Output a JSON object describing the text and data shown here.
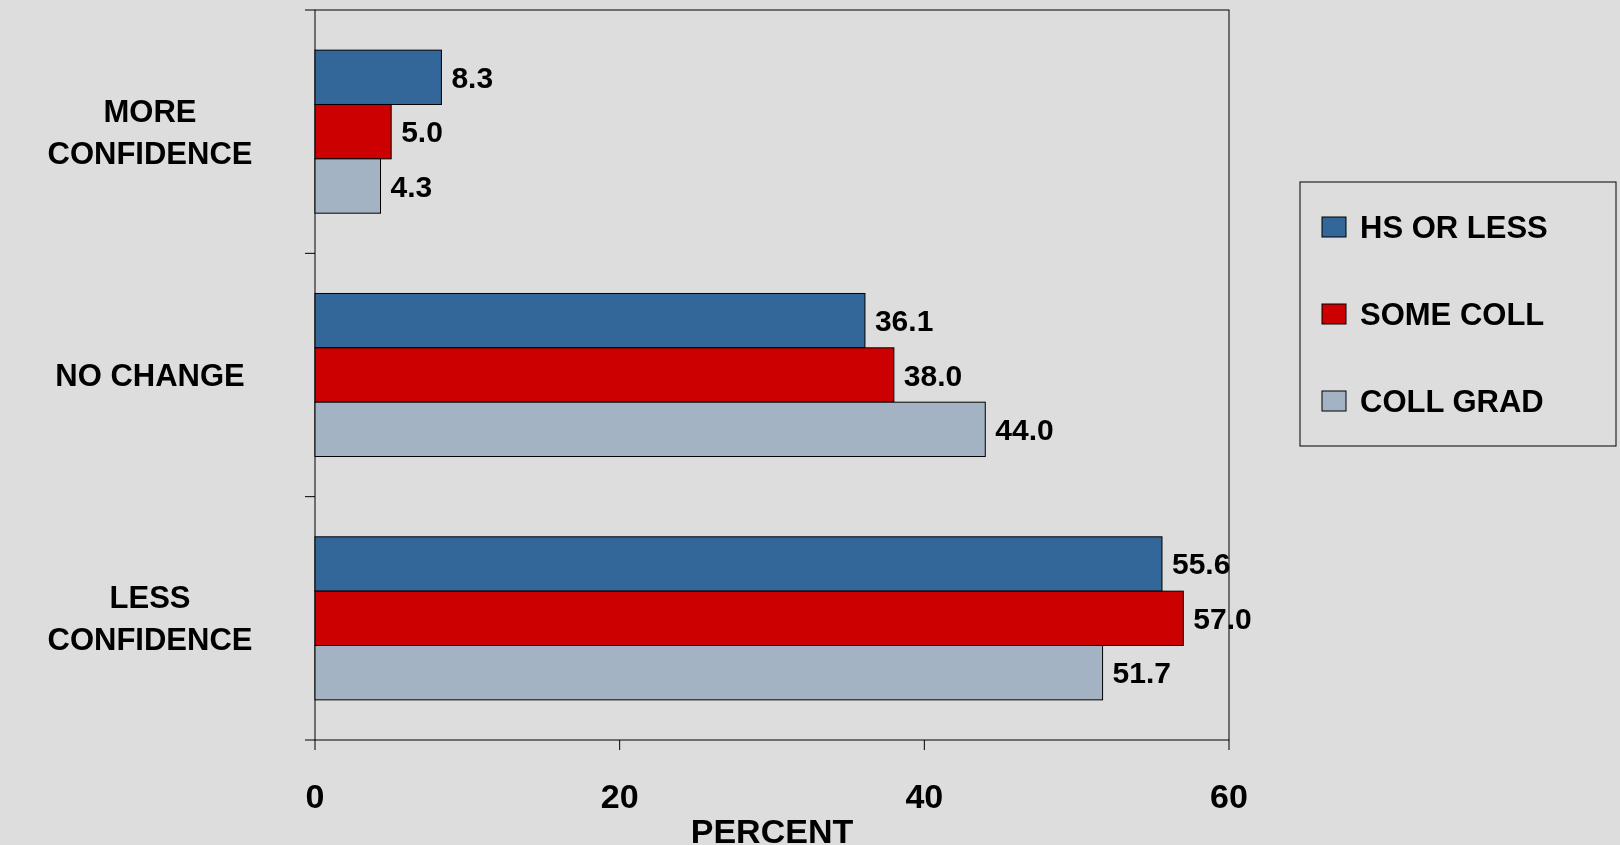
{
  "chart_data": {
    "type": "bar",
    "orientation": "horizontal",
    "xlabel": "PERCENT",
    "categories": [
      "MORE CONFIDENCE",
      "NO CHANGE",
      "LESS CONFIDENCE"
    ],
    "series": [
      {
        "name": "HS OR LESS",
        "color": "#336699",
        "values": [
          8.3,
          36.1,
          55.6
        ],
        "value_labels": [
          "8.3",
          "36.1",
          "55.6"
        ]
      },
      {
        "name": "SOME COLL",
        "color": "#cc0000",
        "values": [
          5.0,
          38.0,
          57.0
        ],
        "value_labels": [
          "5.0",
          "38.0",
          "57.0"
        ]
      },
      {
        "name": "COLL GRAD",
        "color": "#a3b3c3",
        "values": [
          4.3,
          44.0,
          51.7
        ],
        "value_labels": [
          "4.3",
          "44.0",
          "51.7"
        ]
      }
    ],
    "xlim": [
      0,
      60
    ],
    "xticks": [
      0,
      20,
      40,
      60
    ],
    "legend": "right",
    "grid": false
  }
}
